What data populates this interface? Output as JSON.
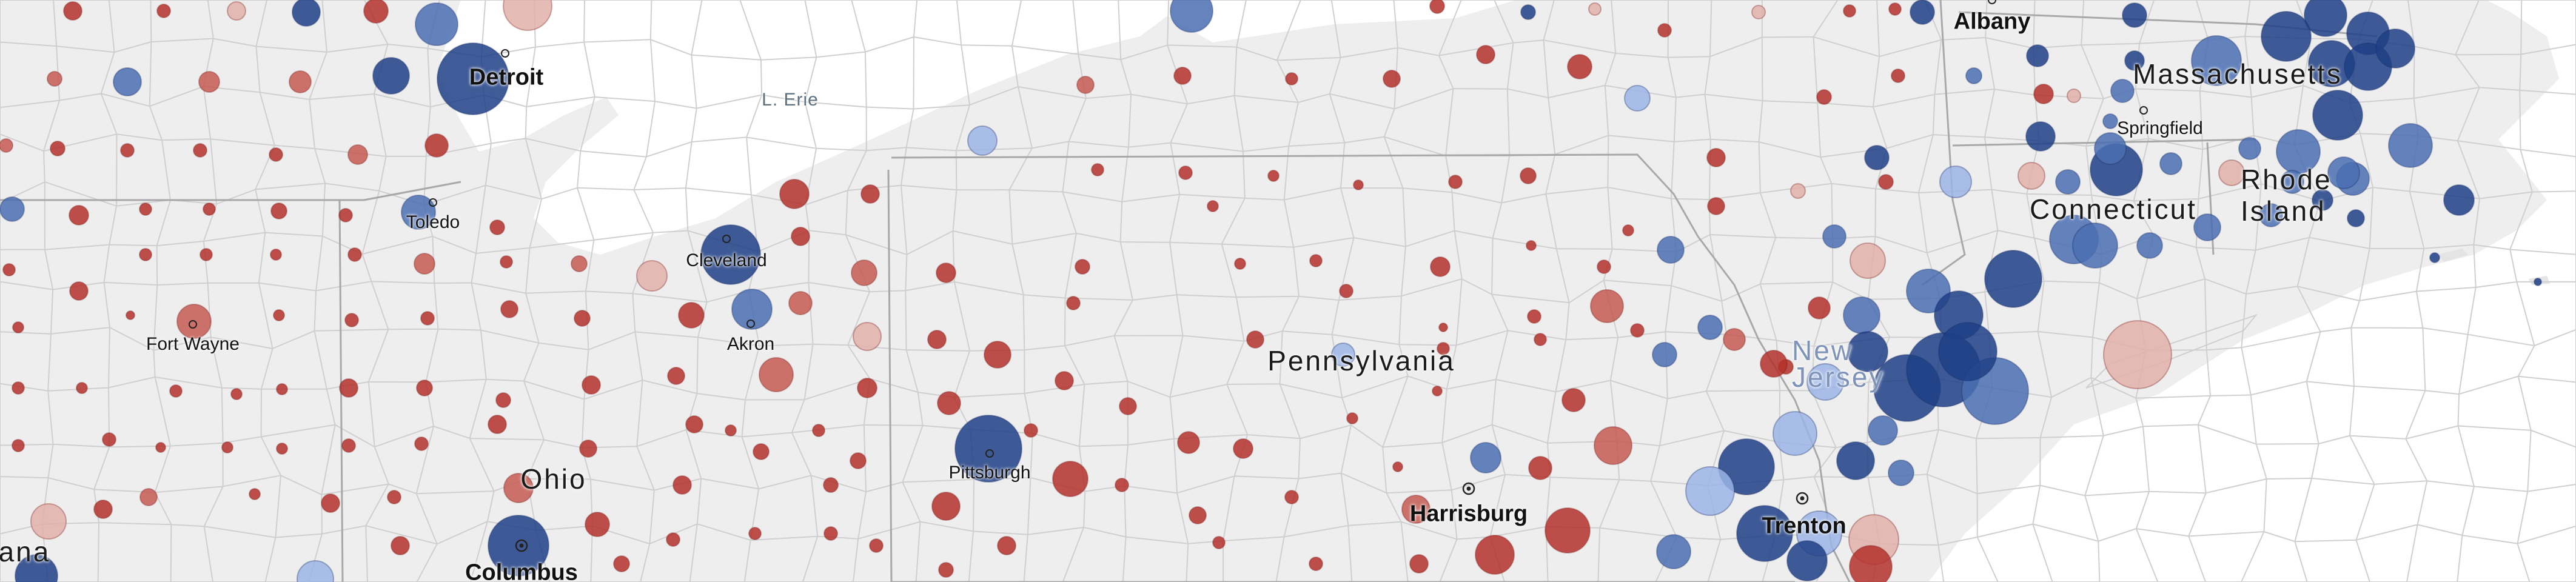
{
  "map": {
    "colors": {
      "background": "#eeeeee",
      "water": "#ffffff",
      "county_border": "#cfcfcf",
      "state_border": "#a8a8a8",
      "dem_strong": "#1e3f86",
      "dem_medium": "#4a6fb3",
      "dem_light": "#9bb4e6",
      "rep_strong": "#b4302a",
      "rep_medium": "#c45a52",
      "rep_light": "#e2b0aa"
    },
    "labels": [
      {
        "id": "detroit",
        "text": "Detroit",
        "kind": "city big"
      },
      {
        "id": "lake-erie",
        "text": "L. Erie",
        "kind": "water"
      },
      {
        "id": "albany",
        "text": "Albany",
        "kind": "city big"
      },
      {
        "id": "massachusetts",
        "text": "Massachusetts",
        "kind": "state"
      },
      {
        "id": "springfield",
        "text": "Springfield",
        "kind": "city"
      },
      {
        "id": "rhode-island",
        "text": "Rhode Island",
        "kind": "state"
      },
      {
        "id": "connecticut",
        "text": "Connecticut",
        "kind": "state"
      },
      {
        "id": "toledo",
        "text": "Toledo",
        "kind": "city"
      },
      {
        "id": "cleveland",
        "text": "Cleveland",
        "kind": "city"
      },
      {
        "id": "akron",
        "text": "Akron",
        "kind": "city"
      },
      {
        "id": "fort-wayne",
        "text": "Fort Wayne",
        "kind": "city"
      },
      {
        "id": "pennsylvania",
        "text": "Pennsylvania",
        "kind": "state"
      },
      {
        "id": "new-jersey",
        "text": "New Jersey",
        "kind": "state"
      },
      {
        "id": "ohio",
        "text": "Ohio",
        "kind": "state"
      },
      {
        "id": "pittsburgh",
        "text": "Pittsburgh",
        "kind": "city"
      },
      {
        "id": "harrisburg",
        "text": "Harrisburg",
        "kind": "city big"
      },
      {
        "id": "trenton",
        "text": "Trenton",
        "kind": "city big"
      },
      {
        "id": "columbus",
        "text": "Columbus",
        "kind": "city big"
      },
      {
        "id": "indiana",
        "text": "Indiana",
        "kind": "state"
      }
    ],
    "capitals": [
      "harrisburg",
      "trenton",
      "columbus"
    ]
  }
}
